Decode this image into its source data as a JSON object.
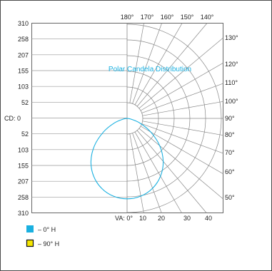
{
  "chart_data": {
    "type": "polar-candela",
    "title": "Polar Candela Distribution",
    "cd_label": "CD:",
    "va_label": "VA:",
    "cd_ticks_upper": [
      "310",
      "258",
      "207",
      "155",
      "103",
      "52"
    ],
    "cd_tick_zero": "0",
    "cd_ticks_lower": [
      "52",
      "103",
      "155",
      "207",
      "258",
      "310"
    ],
    "va_ticks": [
      "0°",
      "10",
      "20",
      "30",
      "40"
    ],
    "angle_labels": [
      "180°",
      "170°",
      "160°",
      "150°",
      "140°",
      "130°",
      "120°",
      "110°",
      "100°",
      "90°",
      "80°",
      "70°",
      "60°",
      "50°"
    ],
    "cd_max": 310,
    "series": [
      {
        "name": "0° H",
        "color": "#1ab0e0",
        "angles_deg": [
          0,
          10,
          20,
          30,
          40,
          50,
          60,
          70,
          80,
          90
        ],
        "candela": [
          265,
          260,
          245,
          220,
          185,
          140,
          90,
          45,
          12,
          0
        ]
      },
      {
        "name": "90° H",
        "color": "#f5e600",
        "angles_deg": [],
        "candela": []
      }
    ],
    "legend": [
      {
        "label": "0° H",
        "color": "#1ab0e0"
      },
      {
        "label": "90° H",
        "color": "#f5e600"
      }
    ],
    "legend_placement": "bottom-left"
  }
}
